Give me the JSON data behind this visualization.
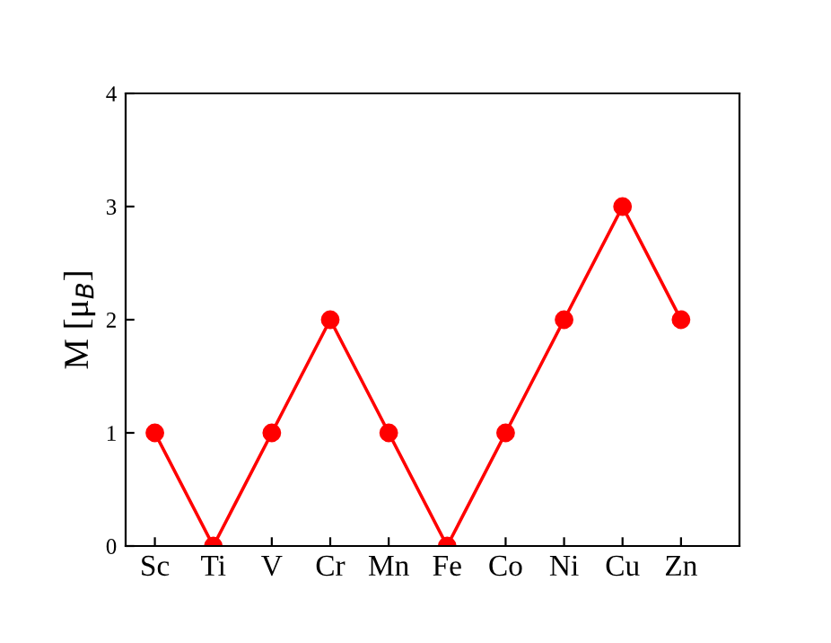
{
  "chart_data": {
    "type": "line",
    "ylabel": "M [μ$_{B}$]",
    "categories": [
      "Sc",
      "Ti",
      "V",
      "Cr",
      "Mn",
      "Fe",
      "Co",
      "Ni",
      "Cu",
      "Zn"
    ],
    "series": [
      {
        "color": "#ff0000",
        "values": [
          1,
          0,
          1,
          2,
          1,
          0,
          1,
          2,
          3,
          2
        ]
      }
    ],
    "ylim": [
      0,
      4
    ],
    "yticks": [
      0,
      1,
      2,
      3,
      4
    ],
    "marker": "circle",
    "line_style": "solid",
    "grid": false,
    "legend": false
  }
}
